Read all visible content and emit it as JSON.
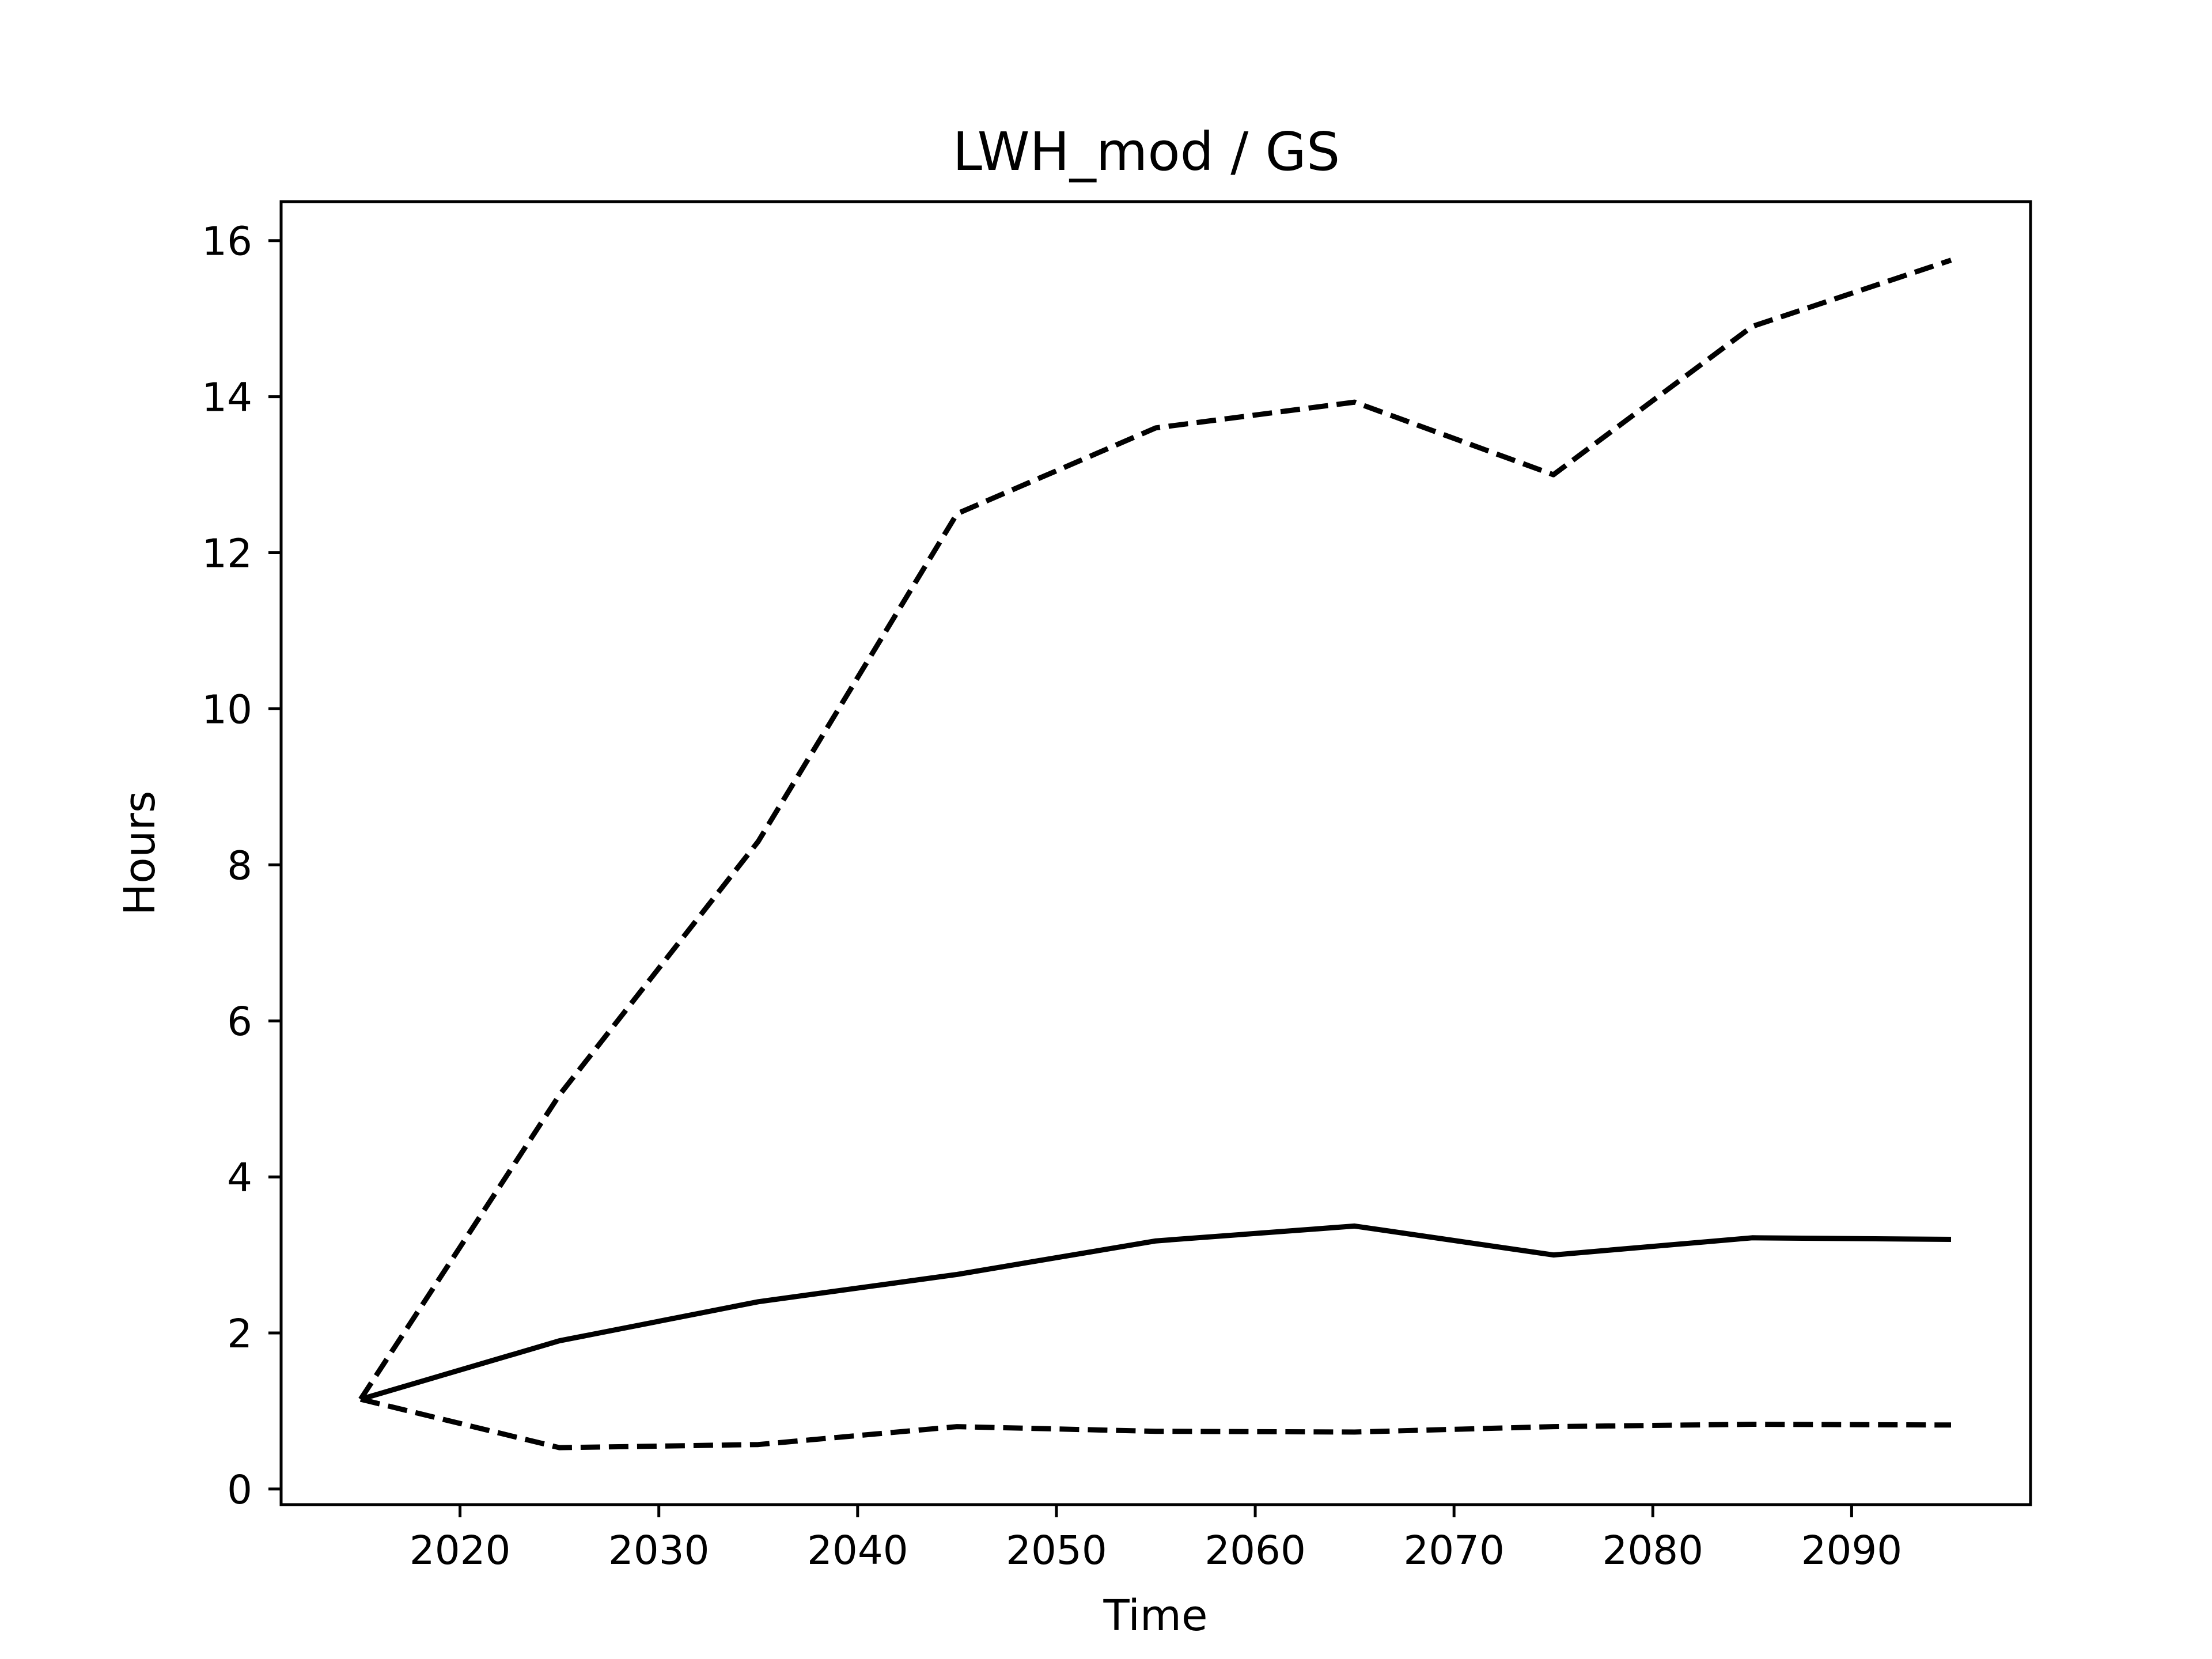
{
  "chart_data": {
    "type": "line",
    "title": "LWH_mod / GS",
    "xlabel": "Time",
    "ylabel": "Hours",
    "xlim": [
      2011,
      2099
    ],
    "ylim": [
      -0.2,
      16.5
    ],
    "xticks": [
      2020,
      2030,
      2040,
      2050,
      2060,
      2070,
      2080,
      2090
    ],
    "yticks": [
      0,
      2,
      4,
      6,
      8,
      10,
      12,
      14,
      16
    ],
    "grid": false,
    "legend": "none",
    "x": [
      2015,
      2025,
      2035,
      2045,
      2055,
      2065,
      2075,
      2085,
      2095
    ],
    "series": [
      {
        "style": "solid",
        "color": "#000000",
        "values": [
          1.15,
          1.9,
          2.4,
          2.75,
          3.18,
          3.37,
          3.0,
          3.22,
          3.2
        ]
      },
      {
        "style": "dashed",
        "color": "#000000",
        "values": [
          1.15,
          5.05,
          8.3,
          12.5,
          13.6,
          13.93,
          13.0,
          14.9,
          15.75
        ]
      },
      {
        "style": "dashed",
        "color": "#000000",
        "values": [
          1.15,
          0.53,
          0.57,
          0.8,
          0.74,
          0.73,
          0.8,
          0.83,
          0.82
        ]
      }
    ]
  }
}
